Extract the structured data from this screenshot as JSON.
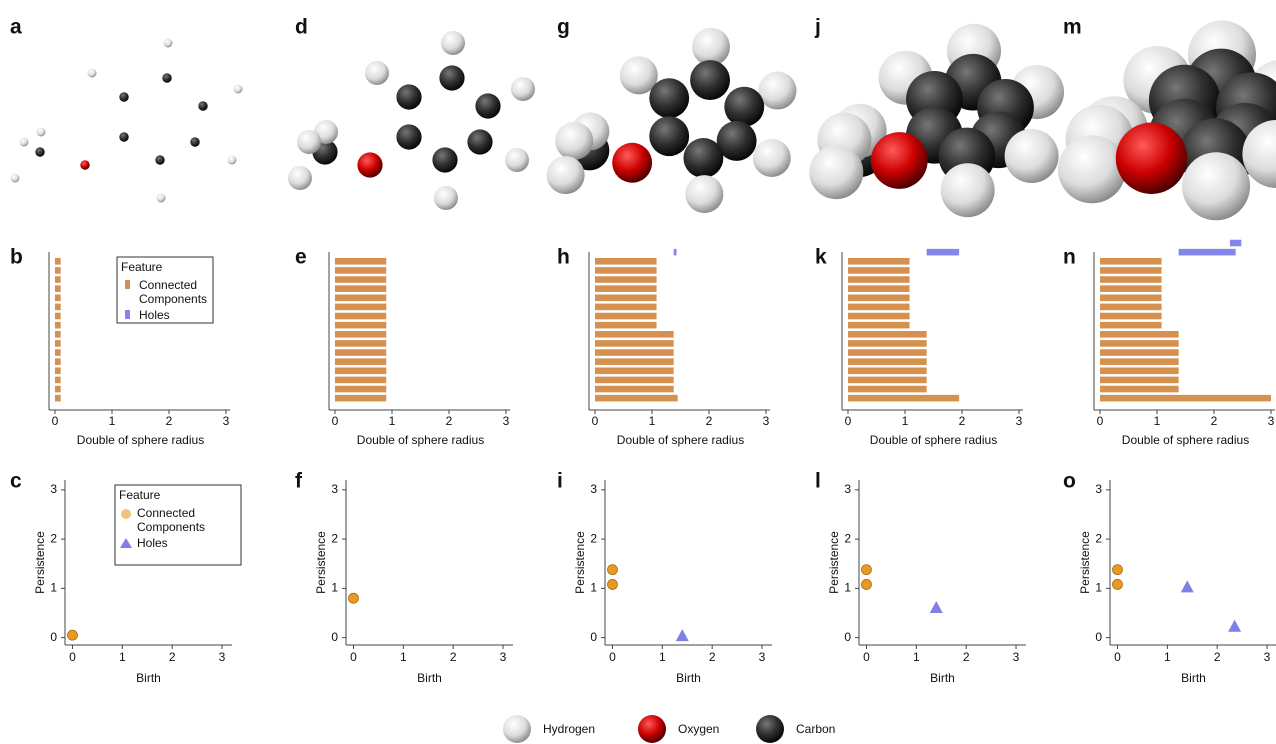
{
  "molecule_panels": [
    "a",
    "d",
    "g",
    "j",
    "m"
  ],
  "atom_legend": [
    "Hydrogen",
    "Oxygen",
    "Carbon"
  ],
  "chart_data": [
    {
      "type": "barcode",
      "panel": "b",
      "x_label": "Double of sphere radius",
      "xlim": [
        0,
        3
      ],
      "xticks": [
        0,
        1,
        2,
        3
      ],
      "legend_title": "Feature",
      "series": [
        {
          "name": "Connected Components",
          "color": "#d4914f",
          "values": [
            [
              0,
              0.1
            ],
            [
              0,
              0.1
            ],
            [
              0,
              0.1
            ],
            [
              0,
              0.1
            ],
            [
              0,
              0.1
            ],
            [
              0,
              0.1
            ],
            [
              0,
              0.1
            ],
            [
              0,
              0.1
            ],
            [
              0,
              0.1
            ],
            [
              0,
              0.1
            ],
            [
              0,
              0.1
            ],
            [
              0,
              0.1
            ],
            [
              0,
              0.1
            ],
            [
              0,
              0.1
            ],
            [
              0,
              0.1
            ],
            [
              0,
              0.1
            ]
          ]
        },
        {
          "name": "Holes",
          "color": "#8585ee",
          "values": []
        }
      ]
    },
    {
      "type": "barcode",
      "panel": "e",
      "x_label": "Double of sphere radius",
      "xlim": [
        0,
        3
      ],
      "xticks": [
        0,
        1,
        2,
        3
      ],
      "series": [
        {
          "color": "#d4914f",
          "values": [
            [
              0,
              0.9
            ],
            [
              0,
              0.9
            ],
            [
              0,
              0.9
            ],
            [
              0,
              0.9
            ],
            [
              0,
              0.9
            ],
            [
              0,
              0.9
            ],
            [
              0,
              0.9
            ],
            [
              0,
              0.9
            ],
            [
              0,
              0.9
            ],
            [
              0,
              0.9
            ],
            [
              0,
              0.9
            ],
            [
              0,
              0.9
            ],
            [
              0,
              0.9
            ],
            [
              0,
              0.9
            ],
            [
              0,
              0.9
            ],
            [
              0,
              0.9
            ]
          ]
        },
        {
          "color": "#8585ee",
          "values": []
        }
      ]
    },
    {
      "type": "barcode",
      "panel": "h",
      "x_label": "Double of sphere radius",
      "xlim": [
        0,
        3
      ],
      "xticks": [
        0,
        1,
        2,
        3
      ],
      "series": [
        {
          "color": "#d4914f",
          "values": [
            [
              0,
              1.08
            ],
            [
              0,
              1.08
            ],
            [
              0,
              1.08
            ],
            [
              0,
              1.08
            ],
            [
              0,
              1.08
            ],
            [
              0,
              1.08
            ],
            [
              0,
              1.08
            ],
            [
              0,
              1.08
            ],
            [
              0,
              1.38
            ],
            [
              0,
              1.38
            ],
            [
              0,
              1.38
            ],
            [
              0,
              1.38
            ],
            [
              0,
              1.38
            ],
            [
              0,
              1.38
            ],
            [
              0,
              1.38
            ],
            [
              0,
              1.45
            ]
          ]
        },
        {
          "color": "#8585ee",
          "values": [
            [
              1.38,
              1.43
            ]
          ]
        }
      ]
    },
    {
      "type": "barcode",
      "panel": "k",
      "x_label": "Double of sphere radius",
      "xlim": [
        0,
        3
      ],
      "xticks": [
        0,
        1,
        2,
        3
      ],
      "series": [
        {
          "color": "#d4914f",
          "values": [
            [
              0,
              1.08
            ],
            [
              0,
              1.08
            ],
            [
              0,
              1.08
            ],
            [
              0,
              1.08
            ],
            [
              0,
              1.08
            ],
            [
              0,
              1.08
            ],
            [
              0,
              1.08
            ],
            [
              0,
              1.08
            ],
            [
              0,
              1.38
            ],
            [
              0,
              1.38
            ],
            [
              0,
              1.38
            ],
            [
              0,
              1.38
            ],
            [
              0,
              1.38
            ],
            [
              0,
              1.38
            ],
            [
              0,
              1.38
            ],
            [
              0,
              1.95
            ]
          ]
        },
        {
          "color": "#8585ee",
          "values": [
            [
              1.38,
              1.95
            ]
          ]
        }
      ]
    },
    {
      "type": "barcode",
      "panel": "n",
      "x_label": "Double of sphere radius",
      "xlim": [
        0,
        3
      ],
      "xticks": [
        0,
        1,
        2,
        3
      ],
      "series": [
        {
          "color": "#d4914f",
          "values": [
            [
              0,
              1.08
            ],
            [
              0,
              1.08
            ],
            [
              0,
              1.08
            ],
            [
              0,
              1.08
            ],
            [
              0,
              1.08
            ],
            [
              0,
              1.08
            ],
            [
              0,
              1.08
            ],
            [
              0,
              1.08
            ],
            [
              0,
              1.38
            ],
            [
              0,
              1.38
            ],
            [
              0,
              1.38
            ],
            [
              0,
              1.38
            ],
            [
              0,
              1.38
            ],
            [
              0,
              1.38
            ],
            [
              0,
              1.38
            ],
            [
              0,
              3
            ]
          ]
        },
        {
          "color": "#8585ee",
          "values": [
            [
              1.38,
              2.38
            ],
            [
              2.28,
              2.48
            ]
          ]
        }
      ]
    },
    {
      "type": "persistence",
      "panel": "c",
      "x_label": "Birth",
      "y_label": "Persistence",
      "xlim": [
        -0.15,
        3.2
      ],
      "ylim": [
        -0.15,
        3.2
      ],
      "xticks": [
        0,
        1,
        2,
        3
      ],
      "yticks": [
        0,
        1,
        2,
        3
      ],
      "legend_title": "Feature",
      "series": [
        {
          "name": "Connected Components",
          "color": "#e89a22",
          "marker": "circle",
          "x": [
            0
          ],
          "values": [
            0.05
          ]
        },
        {
          "name": "Holes",
          "color": "#7f7fe8",
          "marker": "triangle",
          "x": [],
          "values": []
        }
      ]
    },
    {
      "type": "persistence",
      "panel": "f",
      "x_label": "Birth",
      "y_label": "Persistence",
      "xlim": [
        -0.15,
        3.2
      ],
      "ylim": [
        -0.15,
        3.2
      ],
      "xticks": [
        0,
        1,
        2,
        3
      ],
      "yticks": [
        0,
        1,
        2,
        3
      ],
      "series": [
        {
          "color": "#e89a22",
          "marker": "circle",
          "x": [
            0
          ],
          "values": [
            0.8
          ]
        },
        {
          "color": "#7f7fe8",
          "marker": "triangle",
          "x": [],
          "values": []
        }
      ]
    },
    {
      "type": "persistence",
      "panel": "i",
      "x_label": "Birth",
      "y_label": "Persistence",
      "xlim": [
        -0.15,
        3.2
      ],
      "ylim": [
        -0.15,
        3.2
      ],
      "xticks": [
        0,
        1,
        2,
        3
      ],
      "yticks": [
        0,
        1,
        2,
        3
      ],
      "series": [
        {
          "color": "#e89a22",
          "marker": "circle",
          "x": [
            0,
            0
          ],
          "values": [
            1.08,
            1.38
          ]
        },
        {
          "color": "#7f7fe8",
          "marker": "triangle",
          "x": [
            1.4
          ],
          "values": [
            0.03
          ]
        }
      ]
    },
    {
      "type": "persistence",
      "panel": "l",
      "x_label": "Birth",
      "y_label": "Persistence",
      "xlim": [
        -0.15,
        3.2
      ],
      "ylim": [
        -0.15,
        3.2
      ],
      "xticks": [
        0,
        1,
        2,
        3
      ],
      "yticks": [
        0,
        1,
        2,
        3
      ],
      "series": [
        {
          "color": "#e89a22",
          "marker": "circle",
          "x": [
            0,
            0
          ],
          "values": [
            1.08,
            1.38
          ]
        },
        {
          "color": "#7f7fe8",
          "marker": "triangle",
          "x": [
            1.4
          ],
          "values": [
            0.6
          ]
        }
      ]
    },
    {
      "type": "persistence",
      "panel": "o",
      "x_label": "Birth",
      "y_label": "Persistence",
      "xlim": [
        -0.15,
        3.2
      ],
      "ylim": [
        -0.15,
        3.2
      ],
      "xticks": [
        0,
        1,
        2,
        3
      ],
      "yticks": [
        0,
        1,
        2,
        3
      ],
      "series": [
        {
          "color": "#e89a22",
          "marker": "circle",
          "x": [
            0,
            0
          ],
          "values": [
            1.08,
            1.38
          ]
        },
        {
          "color": "#7f7fe8",
          "marker": "triangle",
          "x": [
            1.4,
            2.35
          ],
          "values": [
            1.02,
            0.22
          ]
        }
      ]
    }
  ]
}
